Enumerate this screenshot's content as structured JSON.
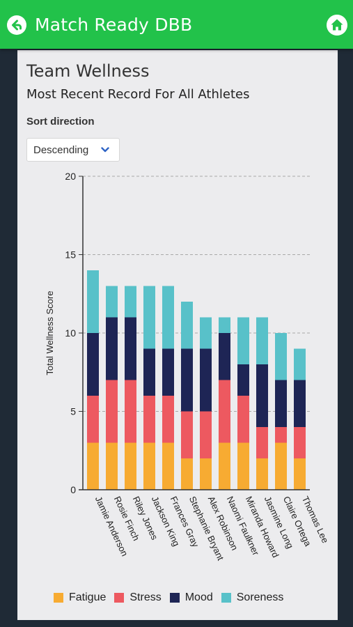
{
  "app": {
    "title": "Match Ready DBB"
  },
  "icons": {
    "back": "back-arrow-icon",
    "home": "home-icon",
    "dropdown": "chevron-down-icon"
  },
  "card": {
    "title": "Team Wellness",
    "subtitle": "Most Recent Record For All Athletes"
  },
  "sort": {
    "label": "Sort direction",
    "value": "Descending"
  },
  "colors": {
    "header": "#22c24a",
    "fatigue": "#f7ab32",
    "stress": "#ed5960",
    "mood": "#1e2555",
    "soreness": "#58c1c9"
  },
  "chart_data": {
    "type": "bar",
    "stacked": true,
    "ylabel": "Total Wellness Score",
    "ylim": [
      0,
      20
    ],
    "yticks": [
      0,
      5,
      10,
      15,
      20
    ],
    "grid": true,
    "legend_position": "bottom",
    "categories": [
      "Jamie Anderson",
      "Rosie Finch",
      "Riley Jones",
      "Jackson King",
      "Frances Gray",
      "Stephanie Bryant",
      "Alex Robinson",
      "Naomi Faulkner",
      "Miranda Howard",
      "Jasmine Long",
      "Claire Ortega",
      "Thomas Lee"
    ],
    "series": [
      {
        "name": "Fatigue",
        "color": "#f7ab32",
        "values": [
          3,
          3,
          3,
          3,
          3,
          2,
          2,
          3,
          3,
          2,
          3,
          2
        ]
      },
      {
        "name": "Stress",
        "color": "#ed5960",
        "values": [
          3,
          4,
          4,
          3,
          3,
          3,
          3,
          4,
          3,
          2,
          1,
          2
        ]
      },
      {
        "name": "Mood",
        "color": "#1e2555",
        "values": [
          4,
          4,
          4,
          3,
          3,
          4,
          4,
          3,
          2,
          4,
          3,
          3
        ]
      },
      {
        "name": "Soreness",
        "color": "#58c1c9",
        "values": [
          4,
          2,
          2,
          4,
          4,
          3,
          2,
          1,
          3,
          3,
          3,
          2
        ]
      }
    ]
  }
}
